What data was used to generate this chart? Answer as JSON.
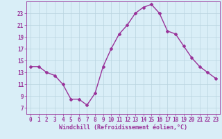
{
  "x": [
    0,
    1,
    2,
    3,
    4,
    5,
    6,
    7,
    8,
    9,
    10,
    11,
    12,
    13,
    14,
    15,
    16,
    17,
    18,
    19,
    20,
    21,
    22,
    23
  ],
  "y": [
    14,
    14,
    13,
    12.5,
    11,
    8.5,
    8.5,
    7.5,
    9.5,
    14,
    17,
    19.5,
    21,
    23,
    24,
    24.5,
    23,
    20,
    19.5,
    17.5,
    15.5,
    14,
    13,
    12
  ],
  "line_color": "#993399",
  "marker": "D",
  "marker_size": 2,
  "bg_color": "#d9eef7",
  "grid_color": "#b8d4e0",
  "xlabel": "Windchill (Refroidissement éolien,°C)",
  "ylim": [
    6,
    25
  ],
  "xlim": [
    -0.5,
    23.5
  ],
  "yticks": [
    7,
    9,
    11,
    13,
    15,
    17,
    19,
    21,
    23
  ],
  "xticks": [
    0,
    1,
    2,
    3,
    4,
    5,
    6,
    7,
    8,
    9,
    10,
    11,
    12,
    13,
    14,
    15,
    16,
    17,
    18,
    19,
    20,
    21,
    22,
    23
  ],
  "tick_fontsize": 5.5,
  "xlabel_fontsize": 6.0,
  "linewidth": 1.0
}
